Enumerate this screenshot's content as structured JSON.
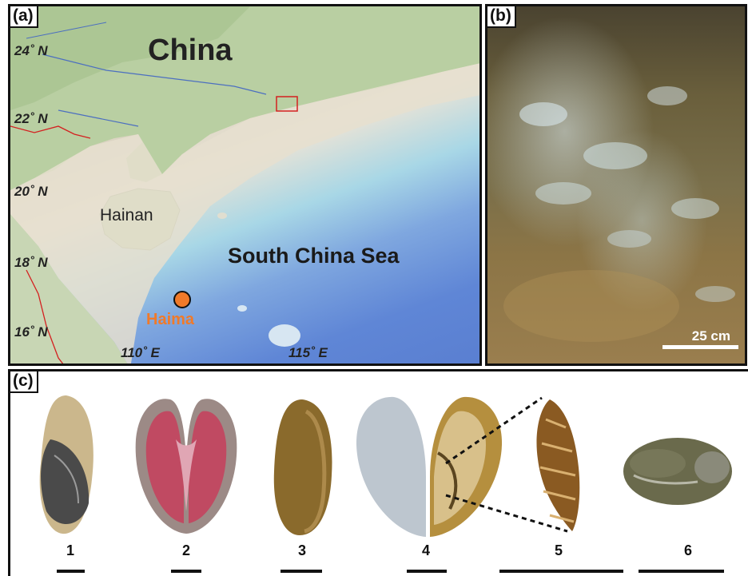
{
  "panel_a": {
    "label": "(a)",
    "latitudes": [
      "24˚ N",
      "22˚ N",
      "20˚ N",
      "18˚ N",
      "16˚ N"
    ],
    "longitudes": [
      "110˚ E",
      "115˚ E"
    ],
    "country_label": "China",
    "island_label": "Hainan",
    "sea_label": "South China Sea",
    "site_label": "Haima",
    "colors": {
      "site": "#f07a2a",
      "deep_sea": "#5a7fd1",
      "shallow_sea": "#a8d7e6",
      "land": "#cbd7c0",
      "border": "#d42020"
    }
  },
  "panel_b": {
    "label": "(b)",
    "scale_label": "25 cm"
  },
  "panel_c": {
    "label": "(c)",
    "specimens": [
      {
        "number": "1"
      },
      {
        "number": "2"
      },
      {
        "number": "3"
      },
      {
        "number": "4"
      },
      {
        "number": "5"
      },
      {
        "number": "6"
      }
    ]
  }
}
